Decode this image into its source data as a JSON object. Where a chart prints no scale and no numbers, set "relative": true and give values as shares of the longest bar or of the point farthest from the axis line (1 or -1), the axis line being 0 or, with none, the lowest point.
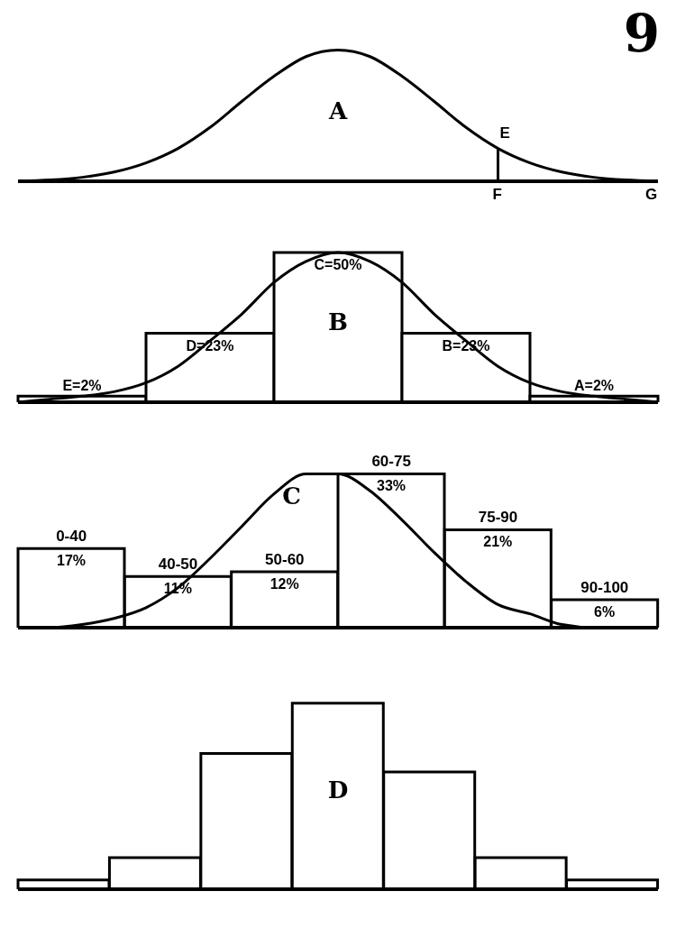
{
  "chart_data": [
    {
      "type": "line",
      "relative": true,
      "categories": [
        null,
        null,
        null,
        null,
        null,
        null,
        null,
        null,
        null,
        null,
        null,
        null,
        null,
        null,
        null,
        null,
        null,
        null,
        null,
        null,
        null
      ],
      "values": [
        0,
        0.01,
        0.03,
        0.07,
        0.14,
        0.25,
        0.41,
        0.61,
        0.8,
        0.95,
        1,
        0.95,
        0.8,
        0.61,
        0.41,
        0.25,
        0.14,
        0.07,
        0.03,
        0.01,
        0
      ],
      "color": "#000000",
      "annotations": [
        "A",
        "9",
        "E",
        "F",
        "G"
      ]
    },
    {
      "type": "bar",
      "tick_labels": false,
      "categories": [
        null,
        null,
        null,
        null,
        null
      ],
      "values": [
        2,
        23,
        50,
        23,
        2
      ],
      "value_labels": [
        "E=2%",
        "D=23%",
        "C=50%",
        "B=23%",
        "A=2%"
      ],
      "color": "#ffffff",
      "annotations": [
        "B"
      ]
    },
    {
      "type": "line",
      "relative": true,
      "categories": [
        null,
        null,
        null,
        null,
        null,
        null,
        null,
        null,
        null,
        null,
        null,
        null,
        null,
        null,
        null,
        null,
        null,
        null,
        null,
        null,
        null
      ],
      "values": [
        0,
        0.02,
        0.04,
        0.07,
        0.13,
        0.24,
        0.41,
        0.59,
        0.8,
        0.94,
        1,
        0.94,
        0.8,
        0.59,
        0.41,
        0.24,
        0.13,
        0.07,
        0.04,
        0.02,
        0
      ],
      "color": "#000000"
    },
    {
      "type": "bar",
      "tick_labels": false,
      "categories": [
        null,
        null,
        null,
        null,
        null,
        null
      ],
      "values": [
        17,
        11,
        12,
        33,
        21,
        6
      ],
      "value_labels": [
        "17%",
        "11%",
        "12%",
        "33%",
        "21%",
        "6%"
      ],
      "color": "#ffffff",
      "annotations": [
        "C",
        "0-40",
        "40-50",
        "50-60",
        "60-75",
        "75-90",
        "90-100"
      ]
    },
    {
      "type": "line",
      "relative": true,
      "categories": [
        null,
        null,
        null,
        null,
        null,
        null,
        null,
        null,
        null,
        null,
        null,
        null,
        null,
        null,
        null,
        null,
        null,
        null,
        null,
        null,
        null
      ],
      "values": [
        0,
        0,
        0.02,
        0.06,
        0.13,
        0.26,
        0.45,
        0.66,
        0.87,
        1,
        1,
        0.89,
        0.7,
        0.49,
        0.3,
        0.15,
        0.09,
        0.02,
        0,
        0,
        0
      ],
      "color": "#000000"
    },
    {
      "type": "bar",
      "relative": true,
      "categories": [
        null,
        null,
        null,
        null,
        null,
        null,
        null
      ],
      "values": [
        0.05,
        0.17,
        0.73,
        1,
        0.63,
        0.17,
        0.05
      ],
      "color": "#ffffff",
      "annotations": [
        "D"
      ]
    }
  ]
}
